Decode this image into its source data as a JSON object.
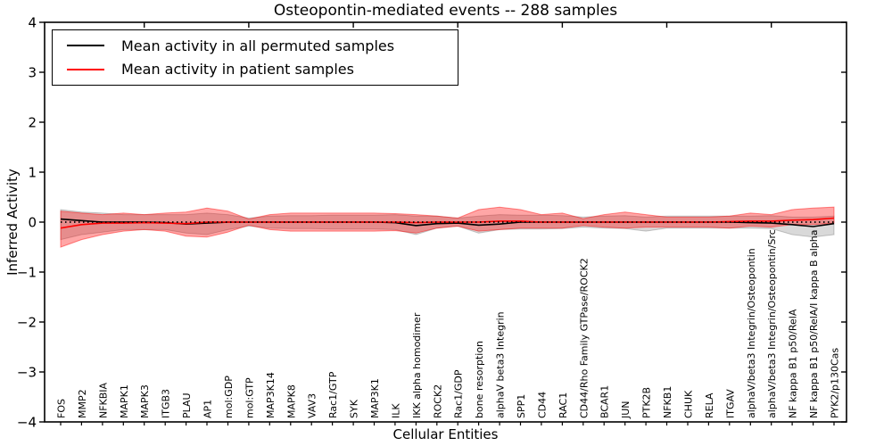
{
  "title": "Osteopontin-mediated events -- 288 samples",
  "chart_data": {
    "type": "line",
    "title": "Osteopontin-mediated events -- 288 samples",
    "xlabel": "Cellular Entities",
    "ylabel": "Inferred Activity",
    "ylim": [
      -4,
      4
    ],
    "yticks": [
      -4,
      -3,
      -2,
      -1,
      0,
      1,
      2,
      3,
      4
    ],
    "grid": false,
    "legend_position": "upper left",
    "categories": [
      "FOS",
      "MMP2",
      "NFKBIA",
      "MAPK1",
      "MAPK3",
      "ITGB3",
      "PLAU",
      "AP1",
      "mol:GDP",
      "mol:GTP",
      "MAP3K14",
      "MAPK8",
      "VAV3",
      "Rac1/GTP",
      "SYK",
      "MAP3K1",
      "ILK",
      "IKK alpha homodimer",
      "ROCK2",
      "Rac1/GDP",
      "bone resorption",
      "alphaV beta3 Integrin",
      "SPP1",
      "CD44",
      "RAC1",
      "CD44/Rho Family GTPase/ROCK2",
      "BCAR1",
      "JUN",
      "PTK2B",
      "NFKB1",
      "CHUK",
      "RELA",
      "ITGAV",
      "alphaV/beta3 Integrin/Osteopontin",
      "alphaV/beta3 Integrin/Osteopontin/Src",
      "NF kappa B1 p50/RelA",
      "NF kappa B1 p50/RelA/I kappa B alpha",
      "PYK2/p130Cas"
    ],
    "series": [
      {
        "name": "Mean activity in all permuted samples",
        "color": "#000000",
        "style": "solid",
        "values": [
          0.06,
          0.03,
          0.0,
          0.0,
          0.0,
          -0.01,
          -0.04,
          -0.02,
          0.0,
          0.0,
          0.0,
          0.0,
          0.0,
          0.0,
          0.0,
          0.0,
          -0.01,
          -0.07,
          -0.03,
          -0.02,
          -0.06,
          -0.04,
          0.0,
          0.0,
          0.0,
          0.0,
          0.0,
          0.0,
          0.0,
          0.0,
          0.0,
          0.0,
          0.0,
          -0.01,
          -0.02,
          -0.05,
          -0.09,
          -0.03
        ]
      },
      {
        "name": "Mean activity in patient samples",
        "color": "#ff0000",
        "style": "solid",
        "values": [
          -0.12,
          -0.05,
          -0.02,
          -0.02,
          -0.01,
          -0.02,
          -0.03,
          0.0,
          0.0,
          0.0,
          0.0,
          0.0,
          0.0,
          0.0,
          0.0,
          0.0,
          0.0,
          -0.01,
          0.0,
          0.0,
          0.0,
          0.02,
          0.02,
          0.0,
          0.0,
          0.0,
          0.0,
          0.0,
          0.0,
          0.0,
          0.0,
          0.0,
          0.01,
          0.02,
          0.02,
          0.04,
          0.05,
          0.08
        ]
      }
    ],
    "bands": [
      {
        "name": "permuted-samples-std-band",
        "color": "#000000",
        "opacity": 0.15,
        "edge_opacity": 0.2,
        "upper": [
          0.25,
          0.2,
          0.18,
          0.15,
          0.15,
          0.15,
          0.15,
          0.18,
          0.15,
          0.08,
          0.12,
          0.13,
          0.13,
          0.14,
          0.14,
          0.14,
          0.15,
          0.12,
          0.12,
          0.08,
          0.12,
          0.15,
          0.14,
          0.14,
          0.13,
          0.1,
          0.12,
          0.13,
          0.1,
          0.12,
          0.12,
          0.12,
          0.12,
          0.12,
          0.13,
          0.1,
          0.1,
          0.12
        ],
        "lower": [
          -0.35,
          -0.25,
          -0.2,
          -0.15,
          -0.15,
          -0.15,
          -0.22,
          -0.25,
          -0.15,
          -0.08,
          -0.12,
          -0.13,
          -0.13,
          -0.14,
          -0.14,
          -0.14,
          -0.15,
          -0.25,
          -0.12,
          -0.08,
          -0.22,
          -0.15,
          -0.14,
          -0.14,
          -0.13,
          -0.1,
          -0.12,
          -0.13,
          -0.18,
          -0.12,
          -0.12,
          -0.12,
          -0.12,
          -0.12,
          -0.13,
          -0.25,
          -0.3,
          -0.25
        ]
      },
      {
        "name": "patient-samples-std-band",
        "color": "#ff0000",
        "opacity": 0.35,
        "edge_opacity": 0.45,
        "upper": [
          0.22,
          0.18,
          0.15,
          0.18,
          0.15,
          0.18,
          0.2,
          0.28,
          0.22,
          0.06,
          0.15,
          0.18,
          0.18,
          0.18,
          0.18,
          0.18,
          0.17,
          0.15,
          0.12,
          0.08,
          0.25,
          0.3,
          0.25,
          0.15,
          0.18,
          0.07,
          0.15,
          0.2,
          0.15,
          0.1,
          0.1,
          0.1,
          0.12,
          0.18,
          0.15,
          0.25,
          0.28,
          0.3
        ],
        "lower": [
          -0.5,
          -0.35,
          -0.25,
          -0.18,
          -0.15,
          -0.18,
          -0.28,
          -0.3,
          -0.2,
          -0.06,
          -0.15,
          -0.18,
          -0.18,
          -0.18,
          -0.18,
          -0.18,
          -0.17,
          -0.22,
          -0.12,
          -0.08,
          -0.18,
          -0.15,
          -0.12,
          -0.12,
          -0.12,
          -0.07,
          -0.1,
          -0.12,
          -0.1,
          -0.1,
          -0.1,
          -0.1,
          -0.12,
          -0.08,
          -0.1,
          -0.05,
          -0.05,
          -0.02
        ]
      }
    ],
    "reference_line": {
      "y": 0,
      "style": "dotted",
      "color": "#000000"
    }
  }
}
